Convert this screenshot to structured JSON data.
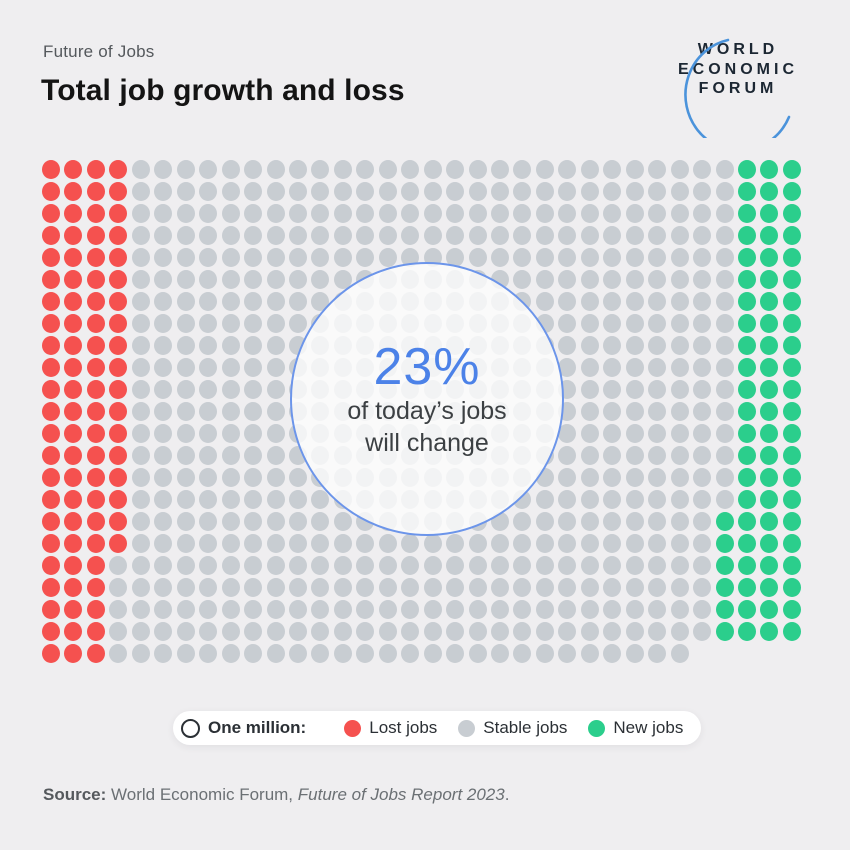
{
  "header": {
    "eyebrow": "Future of Jobs",
    "title": "Total job growth and loss"
  },
  "logo": {
    "line1": "WORLD",
    "line2": "ECONOMIC",
    "line3": "FORUM",
    "text_color": "#1C2733",
    "swoosh_color": "#4B93DB"
  },
  "chart_data": {
    "type": "pictogram",
    "title": "Total job growth and loss",
    "unit_label": "One million:",
    "categories": [
      {
        "name": "Lost jobs",
        "color": "#F5514F",
        "dots": 87,
        "position": "left columns of grid"
      },
      {
        "name": "Stable jobs",
        "color": "#C8CDD2",
        "dots": 618,
        "position": "middle of grid"
      },
      {
        "name": "New jobs",
        "color": "#2BCE8C",
        "dots": 72,
        "position": "right columns of grid"
      }
    ],
    "callout": {
      "value": "23%",
      "line1": "of today’s jobs",
      "line2": "will change",
      "value_color": "#4C82E8",
      "ring_color": "#6C95EA"
    },
    "grid": {
      "rows": 23,
      "cols": 34,
      "x_pitch": 22.45,
      "y_pitch": 22.0,
      "dot_w": 18,
      "dot_h": 19,
      "row_cols": [
        34,
        34,
        34,
        34,
        34,
        34,
        34,
        34,
        34,
        34,
        34,
        34,
        34,
        34,
        34,
        34,
        34,
        34,
        34,
        34,
        34,
        34,
        29
      ],
      "red_per_row": [
        4,
        4,
        4,
        4,
        4,
        4,
        4,
        4,
        4,
        4,
        4,
        4,
        4,
        4,
        4,
        4,
        4,
        4,
        3,
        3,
        3,
        3,
        3
      ],
      "green_per_row": [
        3,
        3,
        3,
        3,
        3,
        3,
        3,
        3,
        3,
        3,
        3,
        3,
        3,
        3,
        3,
        3,
        4,
        4,
        4,
        4,
        4,
        4,
        0
      ]
    }
  },
  "legend": {
    "unit_label": "One million:",
    "items": [
      {
        "label": "Lost jobs",
        "color": "#F5514F"
      },
      {
        "label": "Stable jobs",
        "color": "#C8CDD2"
      },
      {
        "label": "New jobs",
        "color": "#2BCE8C"
      }
    ]
  },
  "source": {
    "prefix": "Source:",
    "normal": " World Economic Forum, ",
    "italic": "Future of Jobs Report 2023",
    "suffix": "."
  }
}
